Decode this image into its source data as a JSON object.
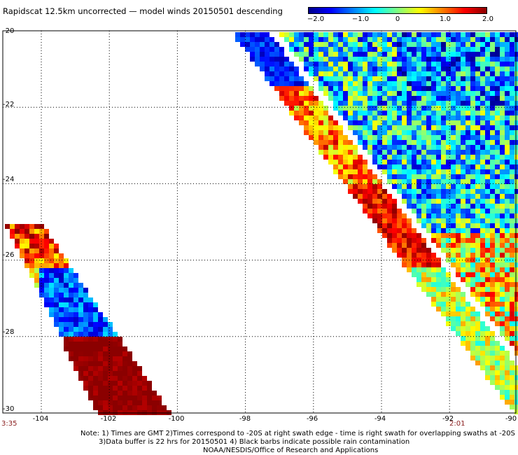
{
  "title": "Rapidscat 12.5km uncorrected — model winds 20150501 descending",
  "colorbar": {
    "labels": [
      "−2.0",
      "−1.0",
      "0",
      "1.0",
      "2.0"
    ],
    "min": -2.0,
    "max": 2.0,
    "colors": [
      "#00008b",
      "#0000ff",
      "#0080ff",
      "#00ffff",
      "#80ff80",
      "#ffff00",
      "#ff8000",
      "#ff0000",
      "#8b0000"
    ]
  },
  "axes": {
    "lat_labels": [
      "-20",
      "-22",
      "-24",
      "-26",
      "-28",
      "-30"
    ],
    "lon_labels": [
      "-104",
      "-102",
      "-100",
      "-98",
      "-96",
      "-94",
      "-92",
      "-90"
    ],
    "lat_range": [
      -30,
      -20
    ],
    "lon_range": [
      -105,
      -90
    ]
  },
  "times": {
    "left": "3:35",
    "right": "2:01"
  },
  "notes": [
    "Note: 1) Times are GMT 2)Times correspond to -20S at right swath edge - time is right swath for overlapping swaths at -20S",
    "3)Data buffer is 22 hrs for 20150501 4) Black barbs indicate possible rain contamination",
    "NOAA/NESDIS/Office of Research and Applications"
  ]
}
